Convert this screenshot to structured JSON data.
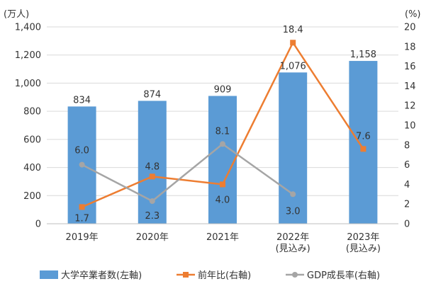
{
  "chart_data": {
    "type": "bar+line",
    "categories": [
      [
        "2019年"
      ],
      [
        "2020年"
      ],
      [
        "2021年"
      ],
      [
        "2022年",
        "(見込み)"
      ],
      [
        "2023年",
        "(見込み)"
      ]
    ],
    "left_axis": {
      "unit_label": "(万人)",
      "ylim": [
        0,
        1400
      ],
      "ticks": [
        0,
        200,
        400,
        600,
        800,
        1000,
        1200,
        1400
      ],
      "tick_labels": [
        "0",
        "200",
        "400",
        "600",
        "800",
        "1,000",
        "1,200",
        "1,400"
      ]
    },
    "right_axis": {
      "unit_label": "(%)",
      "ylim": [
        0,
        20
      ],
      "ticks": [
        0,
        2,
        4,
        6,
        8,
        10,
        12,
        14,
        16,
        18,
        20
      ],
      "tick_labels": [
        "0",
        "2",
        "4",
        "6",
        "8",
        "10",
        "12",
        "14",
        "16",
        "18",
        "20"
      ]
    },
    "grid": true,
    "legend_position": "bottom",
    "series": [
      {
        "name": "大学卒業者数(左軸)",
        "type": "bar",
        "axis": "left",
        "color": "#5b9bd5",
        "values": [
          834,
          874,
          909,
          1076,
          1158
        ],
        "labels": [
          "834",
          "874",
          "909",
          "1,076",
          "1,158"
        ]
      },
      {
        "name": "前年比(右軸)",
        "type": "line",
        "axis": "right",
        "color": "#ed7d31",
        "marker": "square",
        "values": [
          1.7,
          4.8,
          4.0,
          18.4,
          7.6
        ],
        "labels": [
          "1.7",
          "4.8",
          "4.0",
          "18.4",
          "7.6"
        ]
      },
      {
        "name": "GDP成長率(右軸)",
        "type": "line",
        "axis": "right",
        "color": "#a5a5a5",
        "marker": "circle",
        "values": [
          6.0,
          2.3,
          8.1,
          3.0,
          null
        ],
        "labels": [
          "6.0",
          "2.3",
          "8.1",
          "3.0",
          null
        ]
      }
    ]
  }
}
